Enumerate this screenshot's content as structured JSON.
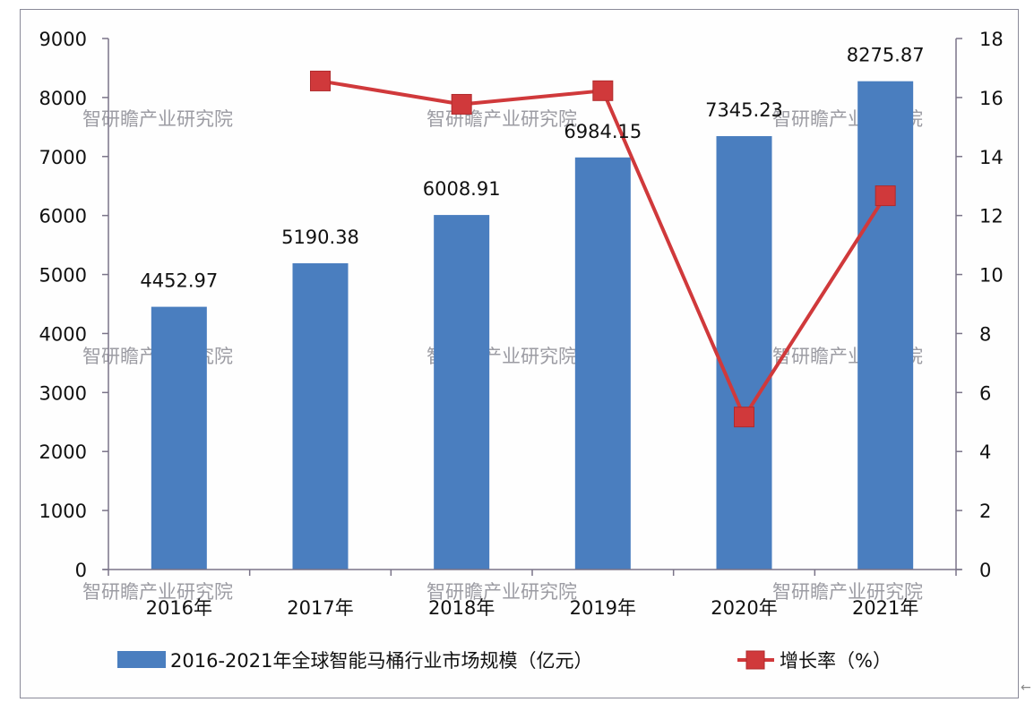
{
  "chart_data": {
    "type": "bar+line",
    "title": "",
    "categories": [
      "2016年",
      "2017年",
      "2018年",
      "2019年",
      "2020年",
      "2021年"
    ],
    "series": [
      {
        "name": "2016-2021年全球智能马桶行业市场规模（亿元）",
        "type": "bar",
        "axis": "left",
        "color": "#4a7ebf",
        "values": [
          4452.97,
          5190.38,
          6008.91,
          6984.15,
          7345.23,
          8275.87
        ],
        "labels": [
          "4452.97",
          "5190.38",
          "6008.91",
          "6984.15",
          "7345.23",
          "8275.87"
        ]
      },
      {
        "name": "增长率（%）",
        "type": "line",
        "axis": "right",
        "color": "#d0393b",
        "values": [
          null,
          16.56,
          15.77,
          16.23,
          5.17,
          12.67
        ]
      }
    ],
    "left_axis": {
      "min": 0,
      "max": 9000,
      "step": 1000,
      "ticks": [
        "0",
        "1000",
        "2000",
        "3000",
        "4000",
        "5000",
        "6000",
        "7000",
        "8000",
        "9000"
      ]
    },
    "right_axis": {
      "min": 0,
      "max": 18,
      "step": 2,
      "ticks": [
        "0",
        "2",
        "4",
        "6",
        "8",
        "10",
        "12",
        "14",
        "16",
        "18"
      ]
    },
    "grid": false,
    "legend_position": "bottom",
    "watermark": "智研瞻产业研究院"
  },
  "legend": {
    "bar_label": "2016-2021年全球智能马桶行业市场规模（亿元）",
    "line_label": "增长率（%）"
  },
  "edge_mark": "←"
}
